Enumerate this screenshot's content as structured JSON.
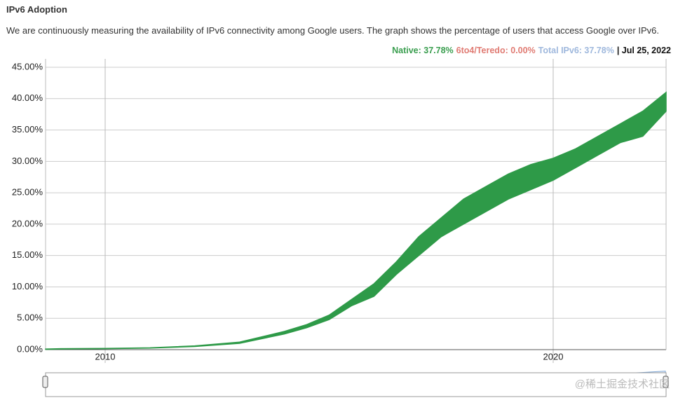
{
  "header": {
    "title": "IPv6 Adoption",
    "description": "We are continuously measuring the availability of IPv6 connectivity among Google users. The graph shows the percentage of users that access Google over IPv6."
  },
  "chart_data": {
    "type": "area-band",
    "legend": [
      {
        "label": "Native: 37.78%",
        "color": "#3a9e4f"
      },
      {
        "label": "6to4/Teredo: 0.00%",
        "color": "#e07b73"
      },
      {
        "label": "Total IPv6: 37.78%",
        "color": "#9fb8dd"
      },
      {
        "label": "| Jul 25, 2022",
        "color": "#111111"
      }
    ],
    "x": [
      2008.67,
      2009,
      2010,
      2011,
      2012,
      2013,
      2014,
      2014.5,
      2015,
      2015.5,
      2016,
      2016.5,
      2017,
      2017.5,
      2018,
      2018.5,
      2019,
      2019.5,
      2020,
      2020.5,
      2021,
      2021.5,
      2022,
      2022.52
    ],
    "series": [
      {
        "name": "Native",
        "color": "#2e9a48",
        "values": [
          0.1,
          0.15,
          0.2,
          0.3,
          0.6,
          1.2,
          2.9,
          4.0,
          5.5,
          8,
          10.5,
          14,
          18,
          21,
          24,
          26,
          28,
          29.5,
          30.5,
          32,
          34,
          36,
          38,
          41
        ],
        "lows": [
          0.05,
          0.1,
          0.15,
          0.25,
          0.5,
          1.0,
          2.5,
          3.5,
          4.8,
          7,
          8.5,
          12,
          15,
          18,
          20,
          22,
          24,
          25.5,
          27,
          29,
          31,
          33,
          34,
          38
        ]
      }
    ],
    "xlim": [
      2008.67,
      2022.52
    ],
    "xticks": [
      2010,
      2020
    ],
    "ylim": [
      0,
      45
    ],
    "yticks": [
      {
        "value": 0,
        "label": "0.00%"
      },
      {
        "value": 5,
        "label": "5.00%"
      },
      {
        "value": 10,
        "label": "10.00%"
      },
      {
        "value": 15,
        "label": "15.00%"
      },
      {
        "value": 20,
        "label": "20.00%"
      },
      {
        "value": 25,
        "label": "25.00%"
      },
      {
        "value": 30,
        "label": "30.00%"
      },
      {
        "value": 35,
        "label": "35.00%"
      },
      {
        "value": 40,
        "label": "40.00%"
      },
      {
        "value": 45,
        "label": "45.00%"
      }
    ],
    "grid": true
  },
  "watermark": "@稀土掘金技术社区"
}
